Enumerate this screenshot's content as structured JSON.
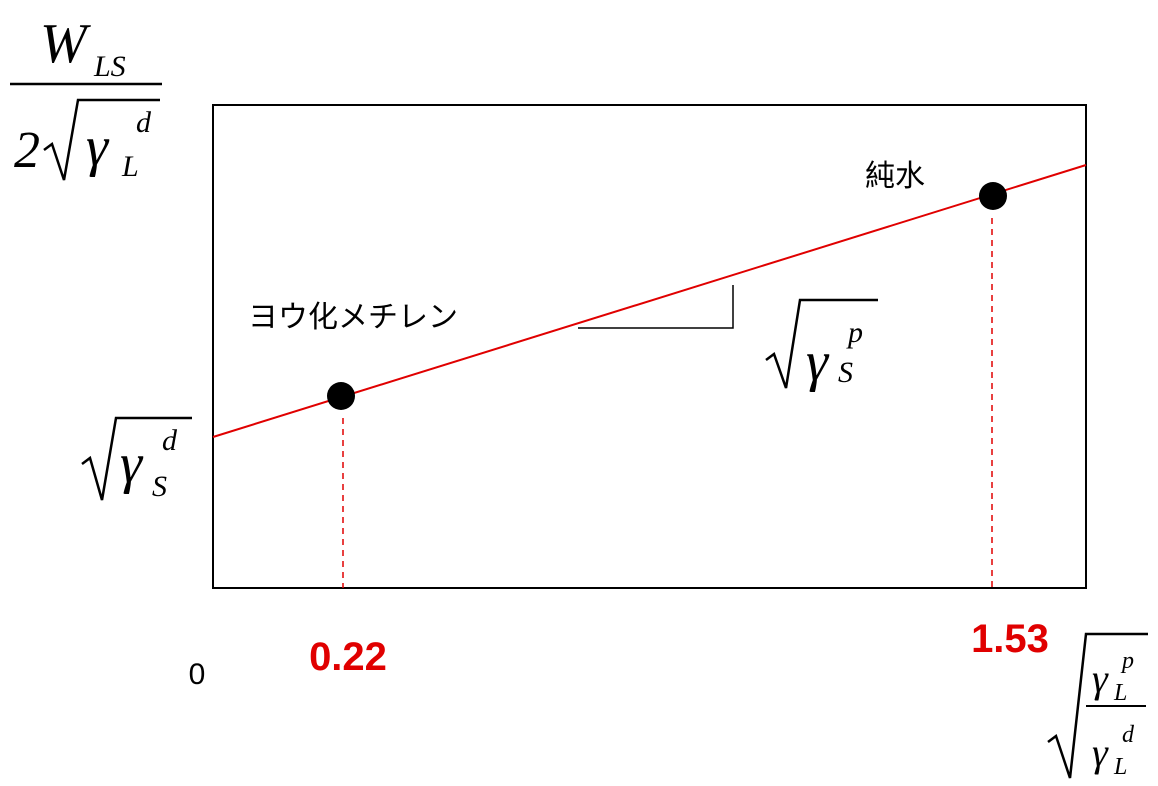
{
  "origin_label": "0",
  "y_axis_label": {
    "numerator": {
      "symbol": "W",
      "subscript": "LS"
    },
    "denominator": {
      "coefficient": "2",
      "symbol": "γ",
      "subscript": "L",
      "superscript": "d"
    }
  },
  "intercept_label": {
    "symbol": "γ",
    "subscript": "S",
    "superscript": "d"
  },
  "slope_label": {
    "symbol": "γ",
    "subscript": "S",
    "superscript": "p"
  },
  "x_axis_label": {
    "numerator": {
      "symbol": "γ",
      "subscript": "L",
      "superscript": "p"
    },
    "denominator": {
      "symbol": "γ",
      "subscript": "L",
      "superscript": "d"
    }
  },
  "points": [
    {
      "label": "ヨウ化メチレン",
      "x_label": "0.22"
    },
    {
      "label": "純水",
      "x_label": "1.53"
    }
  ]
}
